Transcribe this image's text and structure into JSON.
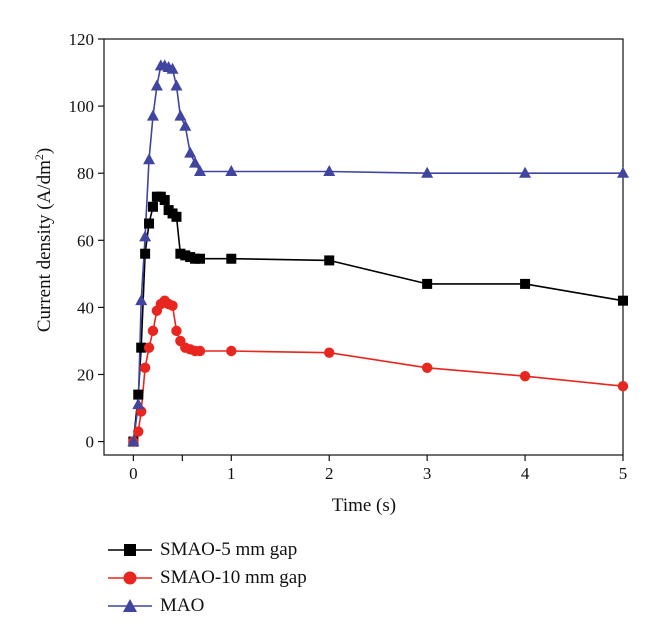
{
  "chart_data": {
    "type": "line",
    "xlabel": "Time (s)",
    "ylabel_main": "Current density (A/dm",
    "ylabel_sup": "2",
    "ylabel_close": ")",
    "xlim": [
      -0.3,
      5
    ],
    "ylim": [
      -4,
      120
    ],
    "x_tick_positions": [
      0,
      0.5,
      1,
      2,
      3,
      4,
      5
    ],
    "x_tick_labels": [
      "0",
      "",
      "1",
      "2",
      "3",
      "4",
      "5"
    ],
    "y_ticks": [
      0,
      20,
      40,
      60,
      80,
      100,
      120
    ],
    "grid": false,
    "legend_position": "bottom-left",
    "series": [
      {
        "name": "SMAO-5 mm gap",
        "color": "#000000",
        "marker": "square",
        "x": [
          0,
          0.05,
          0.08,
          0.12,
          0.16,
          0.2,
          0.24,
          0.28,
          0.32,
          0.36,
          0.4,
          0.44,
          0.48,
          0.53,
          0.58,
          0.63,
          0.68,
          1,
          2,
          3,
          4,
          5
        ],
        "y": [
          0,
          14,
          28,
          56,
          65,
          70,
          73,
          73,
          72,
          69,
          68,
          67,
          56,
          55.5,
          55,
          54.5,
          54.5,
          54.5,
          54,
          47,
          47,
          42
        ]
      },
      {
        "name": "SMAO-10 mm gap",
        "color": "#e8251f",
        "marker": "circle",
        "x": [
          0,
          0.05,
          0.08,
          0.12,
          0.16,
          0.2,
          0.24,
          0.28,
          0.32,
          0.36,
          0.4,
          0.44,
          0.48,
          0.53,
          0.58,
          0.63,
          0.68,
          1,
          2,
          3,
          4,
          5
        ],
        "y": [
          0,
          3,
          9,
          22,
          28,
          33,
          39,
          41,
          42,
          41,
          40.5,
          33,
          30,
          28,
          27.5,
          27,
          27,
          27,
          26.5,
          22,
          19.5,
          16.5
        ]
      },
      {
        "name": "MAO",
        "color": "#4045a0",
        "marker": "triangle",
        "x": [
          0,
          0.05,
          0.08,
          0.12,
          0.16,
          0.2,
          0.24,
          0.28,
          0.32,
          0.36,
          0.4,
          0.44,
          0.48,
          0.53,
          0.58,
          0.63,
          0.68,
          1,
          2,
          3,
          4,
          5
        ],
        "y": [
          0,
          11,
          42,
          61,
          84,
          97,
          106,
          112,
          112,
          111.5,
          111,
          106,
          97,
          94,
          86,
          83,
          80.5,
          80.5,
          80.5,
          80,
          80,
          80
        ]
      }
    ]
  }
}
